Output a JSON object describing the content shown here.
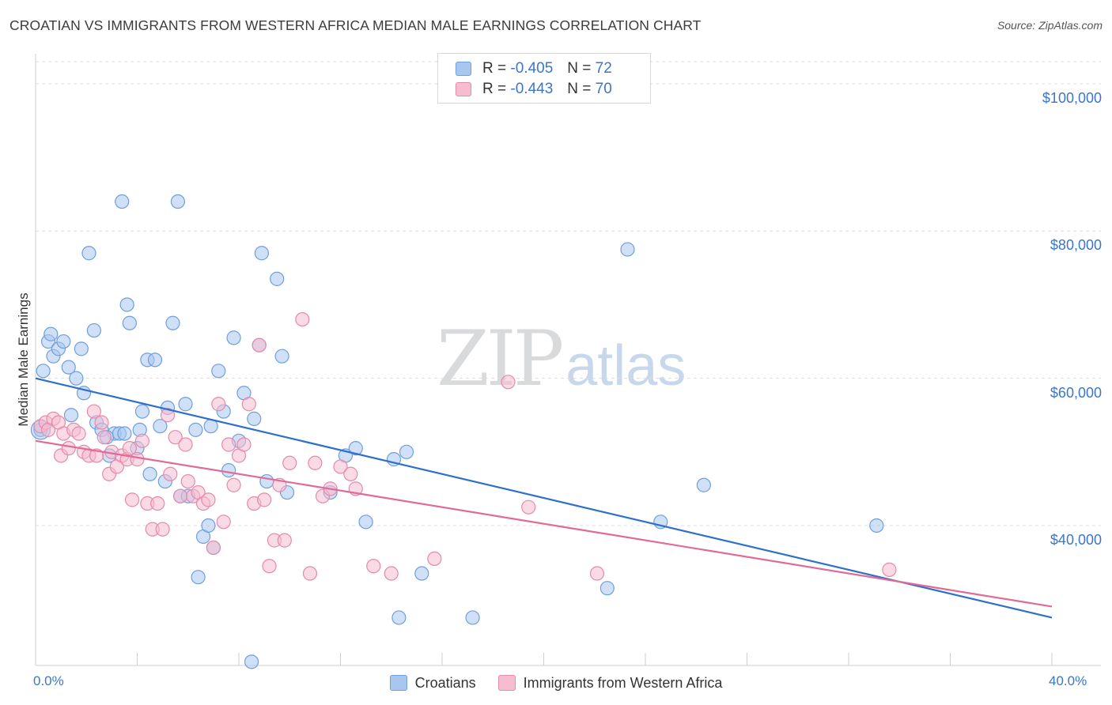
{
  "header": {
    "title": "CROATIAN VS IMMIGRANTS FROM WESTERN AFRICA MEDIAN MALE EARNINGS CORRELATION CHART",
    "source": "Source: ZipAtlas.com"
  },
  "watermark": {
    "zip": "ZIP",
    "atlas": "atlas"
  },
  "legend": {
    "rows": [
      {
        "r_label": "R =",
        "r_value": "-0.405",
        "n_label": "N =",
        "n_value": "72",
        "color": "#a9c6ef",
        "border": "#6f9fdc"
      },
      {
        "r_label": "R =",
        "r_value": "-0.443",
        "n_label": "N =",
        "n_value": "70",
        "color": "#f6bcd0",
        "border": "#e48aab"
      }
    ]
  },
  "bottom_legend": {
    "items": [
      {
        "label": "Croatians",
        "color": "#a9c6ef",
        "border": "#6f9fdc"
      },
      {
        "label": "Immigrants from Western Africa",
        "color": "#f6bcd0",
        "border": "#e48aab"
      }
    ]
  },
  "chart_data": {
    "type": "scatter",
    "title": "CROATIAN VS IMMIGRANTS FROM WESTERN AFRICA MEDIAN MALE EARNINGS CORRELATION CHART",
    "xlabel": "",
    "ylabel": "Median Male Earnings",
    "xlim": [
      0,
      40
    ],
    "ylim": [
      21000,
      103000
    ],
    "x_tick_labels": [
      "0.0%",
      "40.0%"
    ],
    "y_ticks": [
      40000,
      60000,
      80000,
      100000
    ],
    "y_tick_labels": [
      "$40,000",
      "$60,000",
      "$80,000",
      "$100,000"
    ],
    "grid": true,
    "legend_position": "top-center",
    "series": [
      {
        "name": "Croatians",
        "color": "#6f9fdc",
        "fill": "#a9c6ef",
        "line_color": "#2d6fcd",
        "trend": [
          [
            0,
            60000
          ],
          [
            40,
            27500
          ]
        ],
        "points": [
          [
            0.3,
            61000
          ],
          [
            0.2,
            53000
          ],
          [
            0.5,
            65000
          ],
          [
            0.6,
            66000
          ],
          [
            0.7,
            63000
          ],
          [
            0.9,
            64000
          ],
          [
            1.1,
            65000
          ],
          [
            1.3,
            61500
          ],
          [
            1.6,
            60000
          ],
          [
            1.8,
            64000
          ],
          [
            1.9,
            58000
          ],
          [
            1.4,
            55000
          ],
          [
            2.1,
            77000
          ],
          [
            2.3,
            66500
          ],
          [
            2.4,
            54000
          ],
          [
            2.6,
            53000
          ],
          [
            2.9,
            49500
          ],
          [
            3.1,
            52500
          ],
          [
            3.3,
            52500
          ],
          [
            3.4,
            84000
          ],
          [
            3.5,
            52500
          ],
          [
            3.6,
            70000
          ],
          [
            3.7,
            67500
          ],
          [
            4.0,
            50500
          ],
          [
            4.1,
            53000
          ],
          [
            4.2,
            55500
          ],
          [
            4.4,
            62500
          ],
          [
            4.5,
            47000
          ],
          [
            4.7,
            62500
          ],
          [
            4.9,
            53500
          ],
          [
            5.1,
            46000
          ],
          [
            5.2,
            56000
          ],
          [
            5.4,
            67500
          ],
          [
            5.6,
            84000
          ],
          [
            5.7,
            44000
          ],
          [
            5.9,
            56500
          ],
          [
            6.0,
            44000
          ],
          [
            6.3,
            53000
          ],
          [
            6.4,
            33000
          ],
          [
            6.6,
            38500
          ],
          [
            6.8,
            40000
          ],
          [
            6.9,
            53500
          ],
          [
            7.2,
            61000
          ],
          [
            7.4,
            55500
          ],
          [
            7.6,
            47500
          ],
          [
            7.8,
            65500
          ],
          [
            8.0,
            51500
          ],
          [
            8.2,
            58000
          ],
          [
            8.5,
            21500
          ],
          [
            8.6,
            54500
          ],
          [
            8.8,
            64500
          ],
          [
            8.9,
            77000
          ],
          [
            9.1,
            46000
          ],
          [
            9.5,
            73500
          ],
          [
            9.7,
            63000
          ],
          [
            9.9,
            44500
          ],
          [
            11.6,
            44500
          ],
          [
            12.2,
            49500
          ],
          [
            12.6,
            50500
          ],
          [
            13.0,
            40500
          ],
          [
            14.1,
            49000
          ],
          [
            14.3,
            27500
          ],
          [
            14.6,
            50000
          ],
          [
            15.2,
            33500
          ],
          [
            17.2,
            27500
          ],
          [
            22.5,
            31500
          ],
          [
            23.3,
            77500
          ],
          [
            24.6,
            40500
          ],
          [
            26.3,
            45500
          ],
          [
            33.1,
            40000
          ],
          [
            7.0,
            37000
          ],
          [
            2.8,
            52000
          ]
        ]
      },
      {
        "name": "Immigrants from Western Africa",
        "color": "#e48aab",
        "fill": "#f6bcd0",
        "line_color": "#e06a98",
        "trend": [
          [
            0,
            51500
          ],
          [
            40,
            29000
          ]
        ],
        "points": [
          [
            0.2,
            53500
          ],
          [
            0.4,
            54000
          ],
          [
            0.5,
            53000
          ],
          [
            0.7,
            54500
          ],
          [
            0.9,
            54000
          ],
          [
            1.1,
            52500
          ],
          [
            1.0,
            49500
          ],
          [
            1.3,
            50500
          ],
          [
            1.5,
            53000
          ],
          [
            1.7,
            52500
          ],
          [
            1.9,
            50000
          ],
          [
            2.1,
            49500
          ],
          [
            2.3,
            55500
          ],
          [
            2.4,
            49500
          ],
          [
            2.6,
            54000
          ],
          [
            2.7,
            52000
          ],
          [
            2.9,
            47000
          ],
          [
            3.0,
            50000
          ],
          [
            3.2,
            48000
          ],
          [
            3.4,
            49500
          ],
          [
            3.6,
            49000
          ],
          [
            3.7,
            50500
          ],
          [
            3.8,
            43500
          ],
          [
            4.0,
            49000
          ],
          [
            4.2,
            51500
          ],
          [
            4.4,
            43000
          ],
          [
            4.6,
            39500
          ],
          [
            4.8,
            43000
          ],
          [
            5.0,
            39500
          ],
          [
            5.2,
            55000
          ],
          [
            5.3,
            47000
          ],
          [
            5.5,
            52000
          ],
          [
            5.7,
            44000
          ],
          [
            5.9,
            51000
          ],
          [
            6.0,
            46000
          ],
          [
            6.2,
            44000
          ],
          [
            6.4,
            44500
          ],
          [
            6.6,
            43000
          ],
          [
            6.8,
            43500
          ],
          [
            7.0,
            37000
          ],
          [
            7.2,
            56500
          ],
          [
            7.4,
            40500
          ],
          [
            7.6,
            51000
          ],
          [
            7.8,
            45500
          ],
          [
            8.0,
            49500
          ],
          [
            8.2,
            51000
          ],
          [
            8.4,
            56500
          ],
          [
            8.6,
            43000
          ],
          [
            8.8,
            64500
          ],
          [
            9.0,
            43500
          ],
          [
            9.2,
            34500
          ],
          [
            9.4,
            38000
          ],
          [
            9.6,
            45500
          ],
          [
            9.8,
            38000
          ],
          [
            10.0,
            48500
          ],
          [
            10.5,
            68000
          ],
          [
            10.8,
            33500
          ],
          [
            11.0,
            48500
          ],
          [
            11.3,
            44000
          ],
          [
            11.6,
            45000
          ],
          [
            12.0,
            48000
          ],
          [
            12.4,
            47000
          ],
          [
            12.6,
            45000
          ],
          [
            13.3,
            34500
          ],
          [
            14.0,
            33500
          ],
          [
            15.7,
            35500
          ],
          [
            18.6,
            59500
          ],
          [
            19.4,
            42500
          ],
          [
            22.1,
            33500
          ],
          [
            33.6,
            34000
          ]
        ]
      }
    ]
  }
}
